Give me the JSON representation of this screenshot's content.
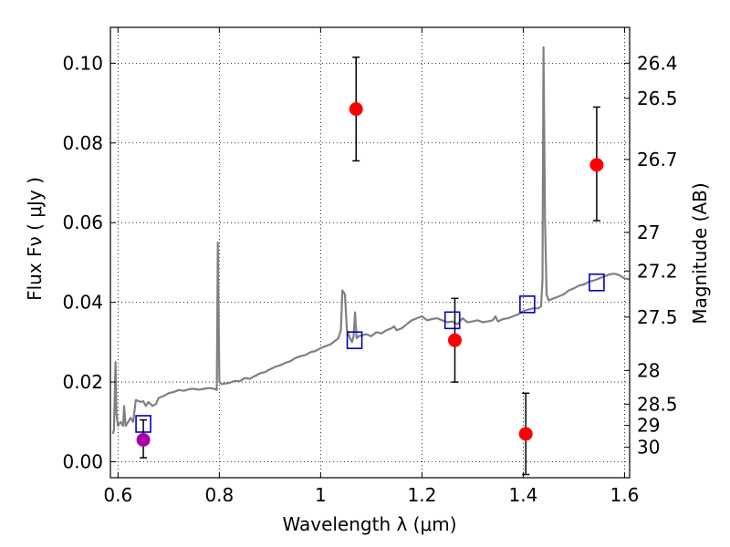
{
  "chart_data": {
    "type": "scatter",
    "xlabel": "Wavelength  λ (μm)",
    "ylabel_left": "Flux  Fν  ( μJy )",
    "ylabel_right": "Magnitude (AB)",
    "xlim": [
      0.585,
      1.61
    ],
    "ylim": [
      -0.004,
      0.109
    ],
    "x_ticks": [
      {
        "value": 0.6,
        "label": "0.6"
      },
      {
        "value": 0.8,
        "label": "0.8"
      },
      {
        "value": 1.0,
        "label": "1"
      },
      {
        "value": 1.2,
        "label": "1.2"
      },
      {
        "value": 1.4,
        "label": "1.4"
      },
      {
        "value": 1.6,
        "label": "1.6"
      }
    ],
    "y_ticks": [
      {
        "value": 0.0,
        "label": "0.00"
      },
      {
        "value": 0.02,
        "label": "0.02"
      },
      {
        "value": 0.04,
        "label": "0.04"
      },
      {
        "value": 0.06,
        "label": "0.06"
      },
      {
        "value": 0.08,
        "label": "0.08"
      },
      {
        "value": 0.1,
        "label": "0.10"
      }
    ],
    "mag_ticks": [
      {
        "mag": 26.4,
        "label": "26.4"
      },
      {
        "mag": 26.5,
        "label": "26.5"
      },
      {
        "mag": 26.7,
        "label": "26.7"
      },
      {
        "mag": 27.0,
        "label": "27"
      },
      {
        "mag": 27.2,
        "label": "27.2"
      },
      {
        "mag": 27.5,
        "label": "27.5"
      },
      {
        "mag": 28.0,
        "label": "28"
      },
      {
        "mag": 28.5,
        "label": "28.5"
      },
      {
        "mag": 29.0,
        "label": "29"
      },
      {
        "mag": 30.0,
        "label": "30"
      }
    ],
    "grid": true,
    "colors": {
      "model": "#808080",
      "red_points": "#ff0000",
      "magenta_point": "#aa00aa",
      "squares": "#0000cc",
      "errorbars": "#000000"
    },
    "model_spectrum": [
      [
        0.59,
        0.007
      ],
      [
        0.592,
        0.008
      ],
      [
        0.595,
        0.025
      ],
      [
        0.597,
        0.012
      ],
      [
        0.6,
        0.009
      ],
      [
        0.605,
        0.01
      ],
      [
        0.61,
        0.009
      ],
      [
        0.612,
        0.014
      ],
      [
        0.615,
        0.009
      ],
      [
        0.62,
        0.01
      ],
      [
        0.625,
        0.011
      ],
      [
        0.63,
        0.01
      ],
      [
        0.635,
        0.0155
      ],
      [
        0.645,
        0.015
      ],
      [
        0.65,
        0.0152
      ],
      [
        0.655,
        0.014
      ],
      [
        0.66,
        0.015
      ],
      [
        0.668,
        0.014
      ],
      [
        0.675,
        0.0145
      ],
      [
        0.68,
        0.016
      ],
      [
        0.69,
        0.0165
      ],
      [
        0.7,
        0.0172
      ],
      [
        0.71,
        0.0175
      ],
      [
        0.72,
        0.018
      ],
      [
        0.73,
        0.0178
      ],
      [
        0.74,
        0.0182
      ],
      [
        0.75,
        0.0183
      ],
      [
        0.76,
        0.0181
      ],
      [
        0.77,
        0.0183
      ],
      [
        0.78,
        0.0185
      ],
      [
        0.79,
        0.0183
      ],
      [
        0.795,
        0.018
      ],
      [
        0.797,
        0.055
      ],
      [
        0.8,
        0.02
      ],
      [
        0.805,
        0.0195
      ],
      [
        0.81,
        0.0196
      ],
      [
        0.82,
        0.0198
      ],
      [
        0.83,
        0.0203
      ],
      [
        0.84,
        0.0202
      ],
      [
        0.85,
        0.021
      ],
      [
        0.86,
        0.0208
      ],
      [
        0.87,
        0.0215
      ],
      [
        0.88,
        0.0222
      ],
      [
        0.89,
        0.0225
      ],
      [
        0.9,
        0.0232
      ],
      [
        0.91,
        0.0238
      ],
      [
        0.92,
        0.0242
      ],
      [
        0.93,
        0.0248
      ],
      [
        0.94,
        0.0252
      ],
      [
        0.95,
        0.026
      ],
      [
        0.96,
        0.0265
      ],
      [
        0.97,
        0.0268
      ],
      [
        0.98,
        0.0275
      ],
      [
        0.99,
        0.0278
      ],
      [
        1.0,
        0.0285
      ],
      [
        1.01,
        0.029
      ],
      [
        1.02,
        0.0295
      ],
      [
        1.03,
        0.0305
      ],
      [
        1.035,
        0.031
      ],
      [
        1.04,
        0.033
      ],
      [
        1.043,
        0.043
      ],
      [
        1.048,
        0.042
      ],
      [
        1.052,
        0.033
      ],
      [
        1.058,
        0.031
      ],
      [
        1.062,
        0.03
      ],
      [
        1.065,
        0.0315
      ],
      [
        1.068,
        0.0375
      ],
      [
        1.071,
        0.031
      ],
      [
        1.075,
        0.0315
      ],
      [
        1.09,
        0.032
      ],
      [
        1.1,
        0.0315
      ],
      [
        1.11,
        0.0325
      ],
      [
        1.12,
        0.0322
      ],
      [
        1.13,
        0.033
      ],
      [
        1.14,
        0.0335
      ],
      [
        1.145,
        0.034
      ],
      [
        1.15,
        0.033
      ],
      [
        1.16,
        0.0335
      ],
      [
        1.17,
        0.0345
      ],
      [
        1.18,
        0.0355
      ],
      [
        1.19,
        0.036
      ],
      [
        1.2,
        0.0365
      ],
      [
        1.21,
        0.0355
      ],
      [
        1.22,
        0.0358
      ],
      [
        1.23,
        0.036
      ],
      [
        1.24,
        0.0355
      ],
      [
        1.25,
        0.035
      ],
      [
        1.26,
        0.0352
      ],
      [
        1.27,
        0.0345
      ],
      [
        1.28,
        0.036
      ],
      [
        1.29,
        0.035
      ],
      [
        1.3,
        0.0352
      ],
      [
        1.31,
        0.0355
      ],
      [
        1.32,
        0.035
      ],
      [
        1.33,
        0.0352
      ],
      [
        1.34,
        0.0355
      ],
      [
        1.345,
        0.0365
      ],
      [
        1.35,
        0.0352
      ],
      [
        1.36,
        0.0358
      ],
      [
        1.37,
        0.036
      ],
      [
        1.38,
        0.0365
      ],
      [
        1.39,
        0.037
      ],
      [
        1.4,
        0.0378
      ],
      [
        1.41,
        0.0382
      ],
      [
        1.42,
        0.0385
      ],
      [
        1.43,
        0.0385
      ],
      [
        1.435,
        0.039
      ],
      [
        1.438,
        0.0455
      ],
      [
        1.44,
        0.104
      ],
      [
        1.443,
        0.06
      ],
      [
        1.446,
        0.042
      ],
      [
        1.45,
        0.0405
      ],
      [
        1.46,
        0.041
      ],
      [
        1.47,
        0.0415
      ],
      [
        1.48,
        0.042
      ],
      [
        1.49,
        0.043
      ],
      [
        1.5,
        0.0435
      ],
      [
        1.51,
        0.0442
      ],
      [
        1.52,
        0.0445
      ],
      [
        1.53,
        0.0452
      ],
      [
        1.54,
        0.0455
      ],
      [
        1.55,
        0.046
      ],
      [
        1.56,
        0.0465
      ],
      [
        1.57,
        0.047
      ],
      [
        1.58,
        0.0472
      ],
      [
        1.59,
        0.0468
      ],
      [
        1.6,
        0.046
      ],
      [
        1.61,
        0.0458
      ]
    ],
    "red_points": [
      {
        "x": 1.07,
        "y": 0.0885,
        "err_low": 0.0755,
        "err_high": 0.1015
      },
      {
        "x": 1.265,
        "y": 0.0305,
        "err_low": 0.02,
        "err_high": 0.041
      },
      {
        "x": 1.405,
        "y": 0.007,
        "err_low": -0.0032,
        "err_high": 0.0172
      },
      {
        "x": 1.545,
        "y": 0.0745,
        "err_low": 0.0605,
        "err_high": 0.089
      }
    ],
    "magenta_points": [
      {
        "x": 0.65,
        "y": 0.0055,
        "err_low": 0.001,
        "err_high": 0.0105
      }
    ],
    "square_points": [
      {
        "x": 0.65,
        "y": 0.0095
      },
      {
        "x": 1.067,
        "y": 0.0305
      },
      {
        "x": 1.26,
        "y": 0.0355
      },
      {
        "x": 1.408,
        "y": 0.0395
      },
      {
        "x": 1.545,
        "y": 0.045
      }
    ]
  }
}
